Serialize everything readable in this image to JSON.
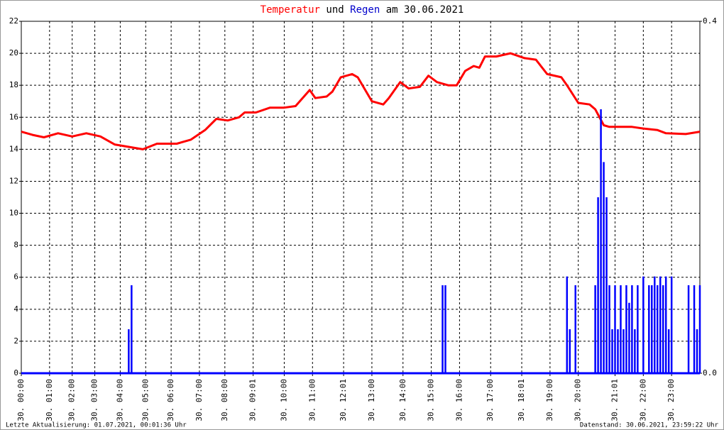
{
  "chart_data": {
    "type": "line",
    "title_parts": [
      "Temperatur",
      "und",
      "Regen",
      "am 30.06.2021"
    ],
    "title_colors": [
      "#ff0000",
      "#000000",
      "#0000cc",
      "#000000"
    ],
    "xlim": [
      0,
      240
    ],
    "xticks": [
      {
        "value": 0,
        "label": "30. 00:00"
      },
      {
        "value": 10,
        "label": "30. 01:00"
      },
      {
        "value": 18,
        "label": "30. 02:00"
      },
      {
        "value": 26,
        "label": "30. 03:00"
      },
      {
        "value": 35,
        "label": "30. 04:00"
      },
      {
        "value": 44,
        "label": "30. 05:00"
      },
      {
        "value": 53,
        "label": "30. 06:00"
      },
      {
        "value": 63,
        "label": "30. 07:00"
      },
      {
        "value": 72,
        "label": "30. 08:00"
      },
      {
        "value": 82,
        "label": "30. 09:01"
      },
      {
        "value": 93,
        "label": "30. 10:00"
      },
      {
        "value": 103,
        "label": "30. 11:00"
      },
      {
        "value": 114,
        "label": "30. 12:01"
      },
      {
        "value": 124,
        "label": "30. 13:00"
      },
      {
        "value": 135,
        "label": "30. 14:00"
      },
      {
        "value": 145,
        "label": "30. 15:00"
      },
      {
        "value": 155,
        "label": "30. 16:00"
      },
      {
        "value": 166,
        "label": "30. 17:00"
      },
      {
        "value": 177,
        "label": "30. 18:01"
      },
      {
        "value": 187,
        "label": "30. 19:00"
      },
      {
        "value": 197,
        "label": "30. 20:00"
      },
      {
        "value": 210,
        "label": "30. 21:01"
      },
      {
        "value": 220,
        "label": "30. 22:00"
      },
      {
        "value": 230,
        "label": "30. 23:00"
      }
    ],
    "ylim": [
      0,
      22
    ],
    "yticks": [
      0,
      2,
      4,
      6,
      8,
      10,
      12,
      14,
      16,
      18,
      20,
      22
    ],
    "y2lim": [
      0,
      0.4
    ],
    "y2ticks": [
      {
        "value": 0,
        "label": "0.0"
      },
      {
        "value": 0.4,
        "label": "0.4"
      }
    ],
    "grid": true,
    "series": [
      {
        "name": "Temperatur",
        "color": "#ff0000",
        "x": [
          0,
          4,
          8,
          13,
          18,
          23,
          28,
          33,
          38,
          43,
          48,
          55,
          60,
          65,
          69,
          73,
          77,
          79,
          83,
          88,
          93,
          97,
          100,
          102,
          104,
          108,
          110,
          113,
          117,
          119,
          124,
          128,
          130,
          134,
          137,
          141,
          144,
          147,
          151,
          154,
          157,
          160,
          162,
          164,
          168,
          173,
          178,
          182,
          186,
          191,
          193,
          197,
          201,
          203,
          206,
          208,
          216,
          220,
          225,
          228,
          235,
          240
        ],
        "values": [
          15.1,
          14.9,
          14.75,
          15.0,
          14.8,
          15.0,
          14.8,
          14.3,
          14.15,
          14.0,
          14.35,
          14.35,
          14.6,
          15.2,
          15.9,
          15.8,
          16.0,
          16.3,
          16.3,
          16.6,
          16.6,
          16.7,
          17.3,
          17.7,
          17.2,
          17.3,
          17.6,
          18.5,
          18.7,
          18.5,
          17.0,
          16.8,
          17.2,
          18.2,
          17.8,
          17.9,
          18.6,
          18.2,
          18.0,
          18.0,
          18.9,
          19.2,
          19.1,
          19.8,
          19.8,
          20.0,
          19.7,
          19.6,
          18.7,
          18.5,
          18.0,
          16.9,
          16.8,
          16.5,
          15.5,
          15.4,
          15.4,
          15.3,
          15.2,
          15.0,
          14.95,
          15.1
        ]
      },
      {
        "name": "Regen",
        "color": "#0000ff",
        "axis": "y2",
        "kind": "spike",
        "x": [
          0,
          38,
          39,
          40,
          148,
          149,
          150,
          151,
          192,
          193,
          194,
          195,
          196,
          197,
          202,
          203,
          204,
          205,
          206,
          207,
          208,
          209,
          210,
          211,
          212,
          213,
          214,
          215,
          216,
          217,
          218,
          219,
          220,
          221,
          222,
          223,
          224,
          225,
          226,
          227,
          228,
          229,
          230,
          231,
          235,
          236,
          237,
          238,
          239,
          240
        ],
        "values": [
          0,
          0.05,
          0.1,
          0,
          0,
          0.1,
          0.1,
          0,
          0,
          0.11,
          0.05,
          0,
          0.1,
          0,
          0,
          0.1,
          0.2,
          0.3,
          0.24,
          0.2,
          0.1,
          0.05,
          0.1,
          0.05,
          0.1,
          0.05,
          0.1,
          0.08,
          0.1,
          0.05,
          0.1,
          0,
          0.11,
          0,
          0.1,
          0.1,
          0.11,
          0.1,
          0.11,
          0.1,
          0.11,
          0.05,
          0.11,
          0,
          0,
          0.1,
          0,
          0.1,
          0.05,
          0.1
        ]
      }
    ],
    "footer_left": "Letzte Aktualisierung: 01.07.2021, 00:01:36 Uhr",
    "footer_right": "Datenstand: 30.06.2021, 23:59:22 Uhr"
  }
}
